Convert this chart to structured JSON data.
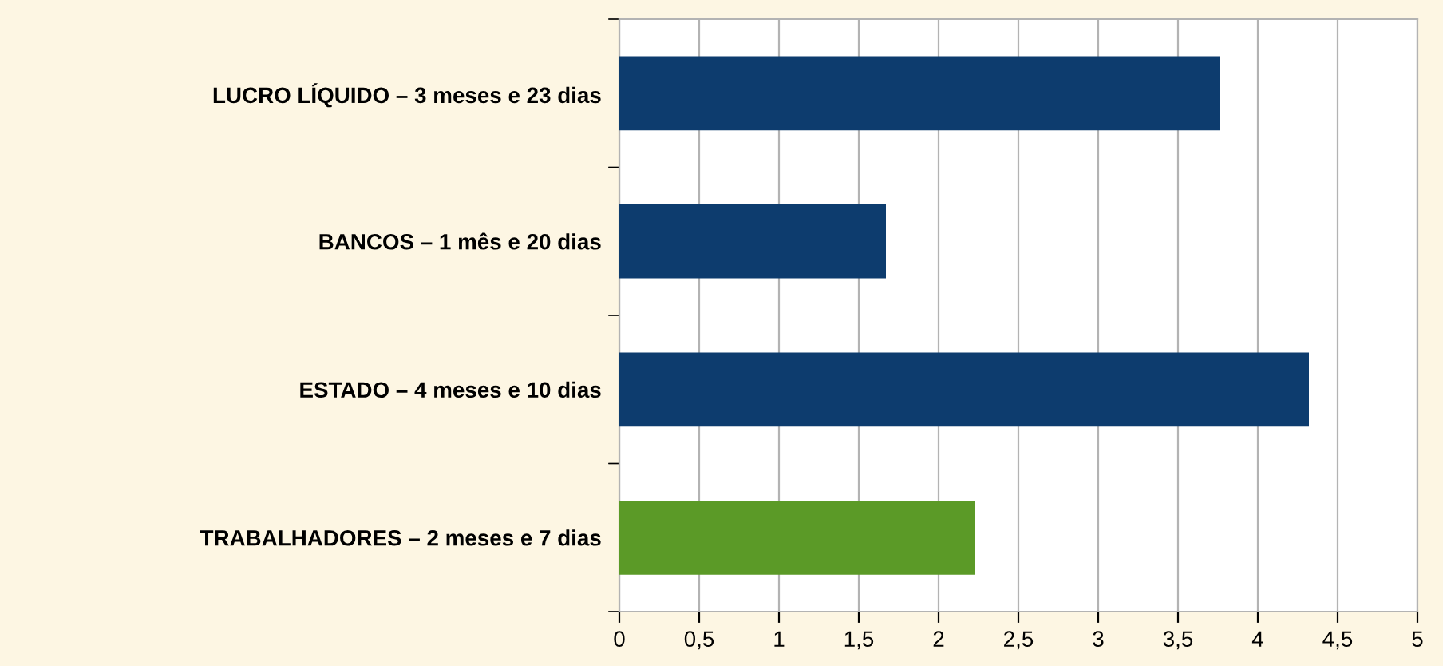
{
  "chart_data": {
    "type": "bar",
    "orientation": "horizontal",
    "categories": [
      "LUCRO LÍQUIDO – 3 meses e 23 dias",
      "BANCOS – 1 mês e 20 dias",
      "ESTADO – 4 meses e 10 dias",
      "TRABALHADORES – 2 meses e 7 dias"
    ],
    "values": [
      3.76,
      1.67,
      4.32,
      2.23
    ],
    "colors": [
      "#0d3c6e",
      "#0d3c6e",
      "#0d3c6e",
      "#5b9a27"
    ],
    "xlim": [
      0,
      5
    ],
    "xticks": [
      0,
      {
        "value": 0.5,
        "label": "0,5"
      },
      1,
      {
        "value": 1.5,
        "label": "1,5"
      },
      2,
      {
        "value": 2.5,
        "label": "2,5"
      },
      3,
      {
        "value": 3.5,
        "label": "3,5"
      },
      4,
      {
        "value": 4.5,
        "label": "4,5"
      },
      5
    ],
    "grid": "x"
  }
}
